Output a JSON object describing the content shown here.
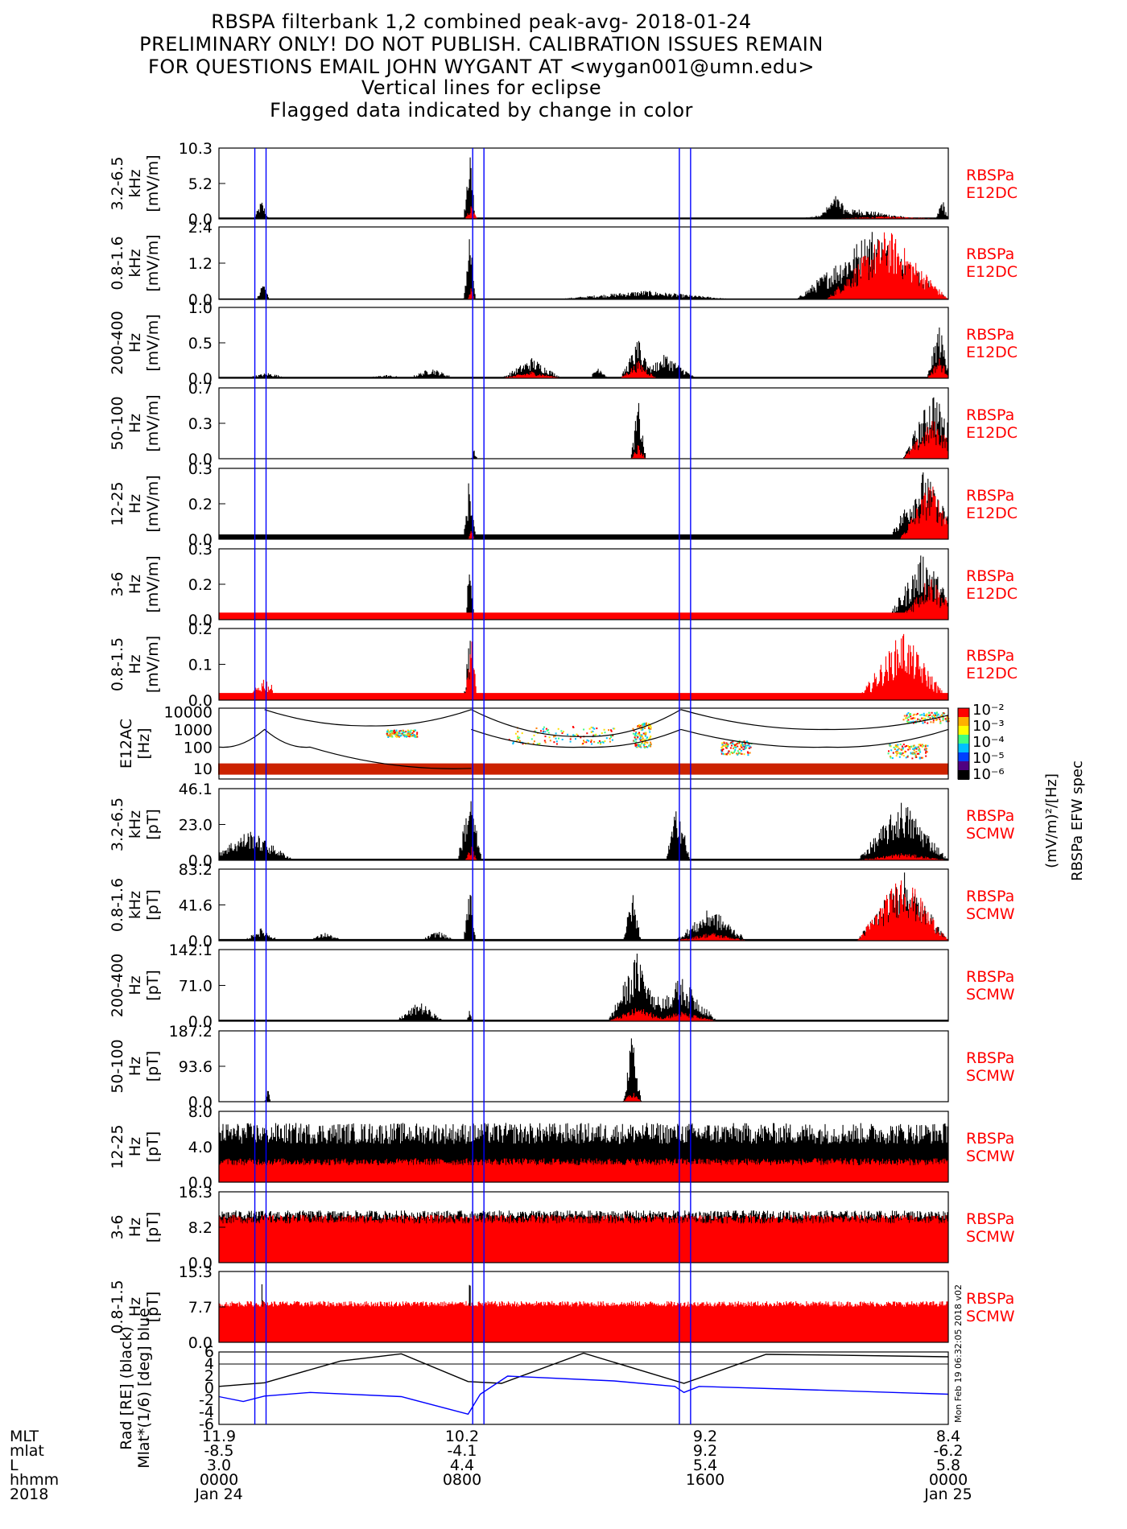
{
  "title_lines": [
    "RBSPA filterbank 1,2 combined peak-avg- 2018-01-24",
    "PRELIMINARY ONLY! DO NOT PUBLISH. CALIBRATION ISSUES REMAIN",
    "FOR QUESTIONS EMAIL JOHN WYGANT AT <wygan001@umn.edu>",
    "Vertical lines for eclipse",
    "Flagged data indicated by change in color"
  ],
  "colors": {
    "peak": "#000000",
    "avg": "#ff0000",
    "eclipse_line": "#0000ff",
    "mlat_line": "#0000ff",
    "label_red": "#ff0000"
  },
  "eclipse_hours": [
    1.18,
    1.55,
    8.35,
    8.72,
    15.15,
    15.52
  ],
  "chart_data": [
    {
      "type": "bar",
      "panel_id": "e-3k",
      "ylabel_lines": [
        "3.2-6.5",
        "kHz",
        "[mV/m]"
      ],
      "ticks": [
        "10.3",
        "5.2",
        "0.0"
      ],
      "ylim": [
        0,
        10.3
      ],
      "side_label": [
        "RBSPa",
        "E12DC"
      ],
      "series": [
        {
          "name": "peak",
          "bursts": [
            [
              1.4,
              0.25,
              2.8
            ],
            [
              8.25,
              0.2,
              10.3
            ],
            [
              20.3,
              0.6,
              3.5
            ],
            [
              21.0,
              2.0,
              1.5
            ],
            [
              23.8,
              0.2,
              3.2
            ]
          ],
          "base": 0.2
        },
        {
          "name": "avg",
          "bursts": [
            [
              8.3,
              0.2,
              2.0
            ],
            [
              22.0,
              2.0,
              0.4
            ]
          ],
          "base": 0.05
        }
      ]
    },
    {
      "type": "bar",
      "panel_id": "e-1k",
      "ylabel_lines": [
        "0.8-1.6",
        "kHz",
        "[mV/m]"
      ],
      "ticks": [
        "2.4",
        "1.2",
        "0.0"
      ],
      "ylim": [
        0,
        2.4
      ],
      "side_label": [
        "RBSPa",
        "E12DC"
      ],
      "series": [
        {
          "name": "peak",
          "bursts": [
            [
              1.45,
              0.2,
              0.7
            ],
            [
              8.25,
              0.2,
              2.4
            ],
            [
              14.0,
              3.0,
              0.3
            ],
            [
              21.5,
              2.5,
              2.4
            ]
          ],
          "base": 0.03
        },
        {
          "name": "avg",
          "bursts": [
            [
              8.3,
              0.1,
              0.5
            ],
            [
              22.0,
              2.0,
              2.4
            ]
          ],
          "base": 0.01
        }
      ]
    },
    {
      "type": "bar",
      "panel_id": "e-300",
      "ylabel_lines": [
        "200-400",
        "Hz",
        "[mV/m]"
      ],
      "ticks": [
        "1.0",
        "0.5",
        "0.0"
      ],
      "ylim": [
        0,
        1.0
      ],
      "side_label": [
        "RBSPa",
        "E12DC"
      ],
      "series": [
        {
          "name": "peak",
          "bursts": [
            [
              1.6,
              0.8,
              0.08
            ],
            [
              5.5,
              0.8,
              0.05
            ],
            [
              7.0,
              0.8,
              0.15
            ],
            [
              10.3,
              1.0,
              0.3
            ],
            [
              12.5,
              0.3,
              0.2
            ],
            [
              13.8,
              0.6,
              0.55
            ],
            [
              14.7,
              1.0,
              0.35
            ],
            [
              23.7,
              0.4,
              0.8
            ]
          ],
          "base": 0.02
        },
        {
          "name": "avg",
          "bursts": [
            [
              13.8,
              0.6,
              0.25
            ],
            [
              10.3,
              1.0,
              0.1
            ],
            [
              23.7,
              0.4,
              0.3
            ]
          ],
          "base": 0.005
        }
      ]
    },
    {
      "type": "bar",
      "panel_id": "e-75",
      "ylabel_lines": [
        "50-100",
        "Hz",
        "[mV/m]"
      ],
      "ticks": [
        "0.7",
        "0.3",
        "0.0"
      ],
      "ylim": [
        0,
        0.7
      ],
      "side_label": [
        "RBSPa",
        "E12DC"
      ],
      "series": [
        {
          "name": "peak",
          "bursts": [
            [
              13.8,
              0.25,
              0.6
            ],
            [
              23.5,
              1.0,
              0.7
            ],
            [
              8.4,
              0.1,
              0.1
            ]
          ],
          "base": 0.0
        },
        {
          "name": "avg",
          "bursts": [
            [
              13.8,
              0.25,
              0.15
            ],
            [
              23.5,
              1.0,
              0.4
            ]
          ],
          "base": 0.0
        }
      ]
    },
    {
      "type": "bar",
      "panel_id": "e-18",
      "ylabel_lines": [
        "12-25",
        "Hz",
        "[mV/m]"
      ],
      "ticks": [
        "0.3",
        "0.2",
        "0.0"
      ],
      "ylim": [
        0,
        0.3
      ],
      "side_label": [
        "RBSPa",
        "E12DC"
      ],
      "series": [
        {
          "name": "peak",
          "bursts": [
            [
              8.25,
              0.2,
              0.3
            ],
            [
              23.2,
              1.2,
              0.3
            ]
          ],
          "base": 0.02
        },
        {
          "name": "avg",
          "bursts": [
            [
              8.3,
              0.1,
              0.05
            ],
            [
              23.4,
              1.0,
              0.25
            ]
          ],
          "base": 0.0
        }
      ]
    },
    {
      "type": "bar",
      "panel_id": "e-4",
      "ylabel_lines": [
        "3-6",
        "Hz",
        "[mV/m]"
      ],
      "ticks": [
        "0.3",
        "0.2",
        "0.0"
      ],
      "ylim": [
        0,
        0.3
      ],
      "side_label": [
        "RBSPa",
        "E12DC"
      ],
      "series": [
        {
          "name": "peak",
          "bursts": [
            [
              8.25,
              0.15,
              0.3
            ],
            [
              23.2,
              1.2,
              0.3
            ]
          ],
          "base": 0.0
        },
        {
          "name": "avg",
          "bursts": [
            [
              23.4,
              1.0,
              0.2
            ]
          ],
          "base": 0.03
        }
      ]
    },
    {
      "type": "bar",
      "panel_id": "e-1",
      "ylabel_lines": [
        "0.8-1.5",
        "Hz",
        "[mV/m]"
      ],
      "ticks": [
        "0.2",
        "0.1",
        "0.0"
      ],
      "ylim": [
        0,
        0.2
      ],
      "side_label": [
        "RBSPa",
        "E12DC"
      ],
      "series": [
        {
          "name": "peak",
          "bursts": [
            [
              8.25,
              0.2,
              0.2
            ]
          ],
          "base": 0.0
        },
        {
          "name": "avg",
          "bursts": [
            [
              1.5,
              0.6,
              0.07
            ],
            [
              22.5,
              1.5,
              0.2
            ],
            [
              8.3,
              0.2,
              0.2
            ]
          ],
          "base": 0.02
        }
      ]
    },
    {
      "type": "heatmap",
      "panel_id": "spec",
      "ylabel_lines": [
        "E12AC",
        "[Hz]"
      ],
      "ticks": [
        "10000",
        "1000",
        "100",
        "10"
      ],
      "ylim": [
        10,
        10000
      ],
      "yscale": "log",
      "colorbar": {
        "ticks": [
          "10⁻²",
          "10⁻³",
          "10⁻⁴",
          "10⁻⁵",
          "10⁻⁶"
        ],
        "label": "(mV/m)²/[Hz]",
        "side_label": "RBSPa EFW spec"
      }
    },
    {
      "type": "bar",
      "panel_id": "b-3k",
      "ylabel_lines": [
        "3.2-6.5",
        "kHz",
        "[pT]"
      ],
      "ticks": [
        "46.1",
        "23.0",
        "0.0"
      ],
      "ylim": [
        0,
        46.1
      ],
      "side_label": [
        "RBSPa",
        "SCMW"
      ],
      "series": [
        {
          "name": "peak",
          "bursts": [
            [
              1.0,
              1.5,
              20.0
            ],
            [
              8.25,
              0.4,
              46.1
            ],
            [
              15.1,
              0.4,
              40.0
            ],
            [
              22.5,
              1.5,
              40.0
            ]
          ],
          "base": 1.0
        },
        {
          "name": "avg",
          "bursts": [
            [
              8.3,
              0.2,
              10.0
            ],
            [
              22.5,
              1.5,
              5.0
            ]
          ],
          "base": 0.2
        }
      ]
    },
    {
      "type": "bar",
      "panel_id": "b-1k",
      "ylabel_lines": [
        "0.8-1.6",
        "kHz",
        "[pT]"
      ],
      "ticks": [
        "83.2",
        "41.6",
        "0.0"
      ],
      "ylim": [
        0,
        83.2
      ],
      "side_label": [
        "RBSPa",
        "SCMW"
      ],
      "series": [
        {
          "name": "peak",
          "bursts": [
            [
              1.4,
              0.6,
              15.0
            ],
            [
              3.5,
              0.6,
              10.0
            ],
            [
              7.2,
              0.6,
              12.0
            ],
            [
              8.25,
              0.2,
              83.2
            ],
            [
              13.6,
              0.3,
              60.0
            ],
            [
              16.2,
              1.2,
              40.0
            ],
            [
              22.5,
              1.5,
              83.2
            ]
          ],
          "base": 2.0
        },
        {
          "name": "avg",
          "bursts": [
            [
              16.2,
              1.2,
              10.0
            ],
            [
              22.5,
              1.5,
              83.2
            ]
          ],
          "base": 0.3
        }
      ]
    },
    {
      "type": "bar",
      "panel_id": "b-300",
      "ylabel_lines": [
        "200-400",
        "Hz",
        "[pT]"
      ],
      "ticks": [
        "142.1",
        "71.0",
        "0.0"
      ],
      "ylim": [
        0,
        142.1
      ],
      "side_label": [
        "RBSPa",
        "SCMW"
      ],
      "series": [
        {
          "name": "peak",
          "bursts": [
            [
              6.6,
              0.8,
              40.0
            ],
            [
              13.8,
              1.0,
              142.1
            ],
            [
              15.2,
              1.2,
              90.0
            ],
            [
              8.25,
              0.1,
              30.0
            ]
          ],
          "base": 3.0
        },
        {
          "name": "avg",
          "bursts": [
            [
              13.8,
              1.0,
              30.0
            ],
            [
              15.2,
              1.2,
              20.0
            ]
          ],
          "base": 0.5
        }
      ]
    },
    {
      "type": "bar",
      "panel_id": "b-75",
      "ylabel_lines": [
        "50-100",
        "Hz",
        "[pT]"
      ],
      "ticks": [
        "187.2",
        "93.6",
        "0.0"
      ],
      "ylim": [
        0,
        187.2
      ],
      "side_label": [
        "RBSPa",
        "SCMW"
      ],
      "series": [
        {
          "name": "peak",
          "bursts": [
            [
              13.6,
              0.3,
              187.2
            ],
            [
              1.6,
              0.1,
              40.0
            ]
          ],
          "base": 1.0
        },
        {
          "name": "avg",
          "bursts": [
            [
              13.6,
              0.3,
              30.0
            ]
          ],
          "base": 0.2
        }
      ]
    },
    {
      "type": "bar",
      "panel_id": "b-18",
      "ylabel_lines": [
        "12-25",
        "Hz",
        "[pT]"
      ],
      "ticks": [
        "8.0",
        "4.0",
        "0.0"
      ],
      "ylim": [
        0,
        8.0
      ],
      "side_label": [
        "RBSPa",
        "SCMW"
      ],
      "series": [
        {
          "name": "peak",
          "bursts": [],
          "base": 5.5,
          "noise": 1.2
        },
        {
          "name": "avg",
          "bursts": [],
          "base": 2.3,
          "noise": 0.4
        }
      ]
    },
    {
      "type": "bar",
      "panel_id": "b-4",
      "ylabel_lines": [
        "3-6",
        "Hz",
        "[pT]"
      ],
      "ticks": [
        "16.3",
        "8.2",
        "0.0"
      ],
      "ylim": [
        0,
        16.3
      ],
      "side_label": [
        "RBSPa",
        "SCMW"
      ],
      "series": [
        {
          "name": "peak",
          "bursts": [],
          "base": 11.0,
          "noise": 1.0
        },
        {
          "name": "avg",
          "bursts": [],
          "base": 10.0,
          "noise": 1.0
        }
      ]
    },
    {
      "type": "bar",
      "panel_id": "b-1",
      "ylabel_lines": [
        "0.8-1.5",
        "Hz",
        "[pT]"
      ],
      "ticks": [
        "15.3",
        "7.7",
        "0.0"
      ],
      "ylim": [
        0,
        15.3
      ],
      "side_label": [
        "RBSPa",
        "SCMW"
      ],
      "series": [
        {
          "name": "peak",
          "bursts": [
            [
              1.4,
              0.1,
              15.3
            ],
            [
              8.25,
              0.1,
              15.3
            ]
          ],
          "base": 0.0
        },
        {
          "name": "avg",
          "bursts": [],
          "base": 8.3,
          "noise": 0.6
        }
      ]
    },
    {
      "type": "line",
      "panel_id": "orbit",
      "ylabel_lines": [
        "Rad [RE] (black)",
        "Mlat*(1/6) [deg] blue"
      ],
      "ticks": [
        "6",
        "4",
        "2",
        "0",
        "-2",
        "-4",
        "-6"
      ],
      "ylim": [
        -6,
        6
      ],
      "side_label": [],
      "series": [
        {
          "name": "Rad",
          "color": "black",
          "x": [
            0,
            1.5,
            4,
            6,
            8.2,
            9.3,
            12,
            15.3,
            18,
            20,
            24
          ],
          "y": [
            0.3,
            0.9,
            4.5,
            5.7,
            1.1,
            0.8,
            5.8,
            0.8,
            5.6,
            5.5,
            5.2
          ]
        },
        {
          "name": "Mlat",
          "color": "blue",
          "x": [
            0,
            0.8,
            1.5,
            3,
            6,
            8.2,
            8.6,
            9.5,
            13,
            15,
            15.3,
            15.8,
            19,
            24
          ],
          "y": [
            -1.4,
            -2.2,
            -1.3,
            -0.7,
            -1.4,
            -4.3,
            -1.0,
            2.0,
            1.2,
            0.3,
            -0.7,
            0.3,
            -0.2,
            -1.0
          ]
        }
      ]
    }
  ],
  "xaxis": {
    "row_labels": [
      "MLT",
      "mlat",
      "L",
      "hhmm",
      "2018"
    ],
    "columns": [
      {
        "hour": 0,
        "values": [
          "11.9",
          "-8.5",
          "3.0",
          "0000",
          "Jan 24"
        ]
      },
      {
        "hour": 8,
        "values": [
          "10.2",
          "-4.1",
          "4.4",
          "0800",
          ""
        ]
      },
      {
        "hour": 16,
        "values": [
          "9.2",
          "9.2",
          "5.4",
          "1600",
          ""
        ]
      },
      {
        "hour": 24,
        "values": [
          "8.4",
          "-6.2",
          "5.8",
          "0000",
          "Jan 25"
        ]
      }
    ]
  },
  "timestamp": "Mon Feb 19 06:32:05 2018 v02"
}
